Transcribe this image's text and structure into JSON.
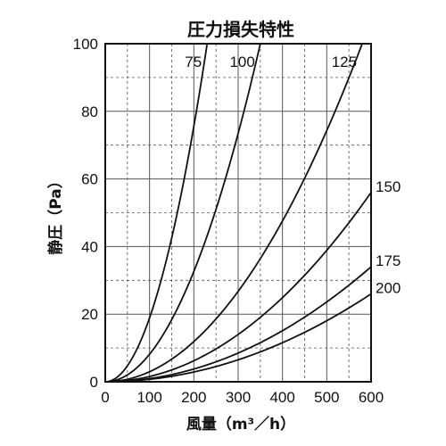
{
  "chart_data": {
    "type": "line",
    "title": "圧力損失特性",
    "xlabel": "風量（m³／h）",
    "ylabel": "静圧（Pa）",
    "xlim": [
      0,
      600
    ],
    "ylim": [
      0,
      100
    ],
    "x_ticks": [
      "0",
      "100",
      "200",
      "300",
      "400",
      "500",
      "600"
    ],
    "y_ticks": [
      "0",
      "20",
      "40",
      "60",
      "80",
      "100"
    ],
    "grid": true,
    "series": [
      {
        "name": "75",
        "x": [
          0,
          50,
          100,
          150,
          200,
          230
        ],
        "y": [
          0,
          4.9,
          19.7,
          44.3,
          78.7,
          100
        ]
      },
      {
        "name": "100",
        "x": [
          0,
          50,
          100,
          150,
          200,
          250,
          300,
          350
        ],
        "y": [
          0,
          2.0,
          8.2,
          18.4,
          32.7,
          51.0,
          73.5,
          100
        ]
      },
      {
        "name": "125",
        "x": [
          0,
          100,
          200,
          300,
          400,
          500,
          580
        ],
        "y": [
          0,
          3.0,
          11.9,
          26.8,
          47.6,
          74.3,
          100
        ]
      },
      {
        "name": "150",
        "x": [
          0,
          100,
          200,
          300,
          400,
          500,
          600
        ],
        "y": [
          0,
          1.6,
          6.2,
          14.0,
          24.9,
          38.9,
          56.0
        ]
      },
      {
        "name": "175",
        "x": [
          0,
          100,
          200,
          300,
          400,
          500,
          600
        ],
        "y": [
          0,
          0.95,
          3.8,
          8.5,
          15.1,
          23.6,
          34.0
        ]
      },
      {
        "name": "200",
        "x": [
          0,
          100,
          200,
          300,
          400,
          500,
          600
        ],
        "y": [
          0,
          0.72,
          2.9,
          6.5,
          11.6,
          18.1,
          26.0
        ]
      }
    ]
  }
}
